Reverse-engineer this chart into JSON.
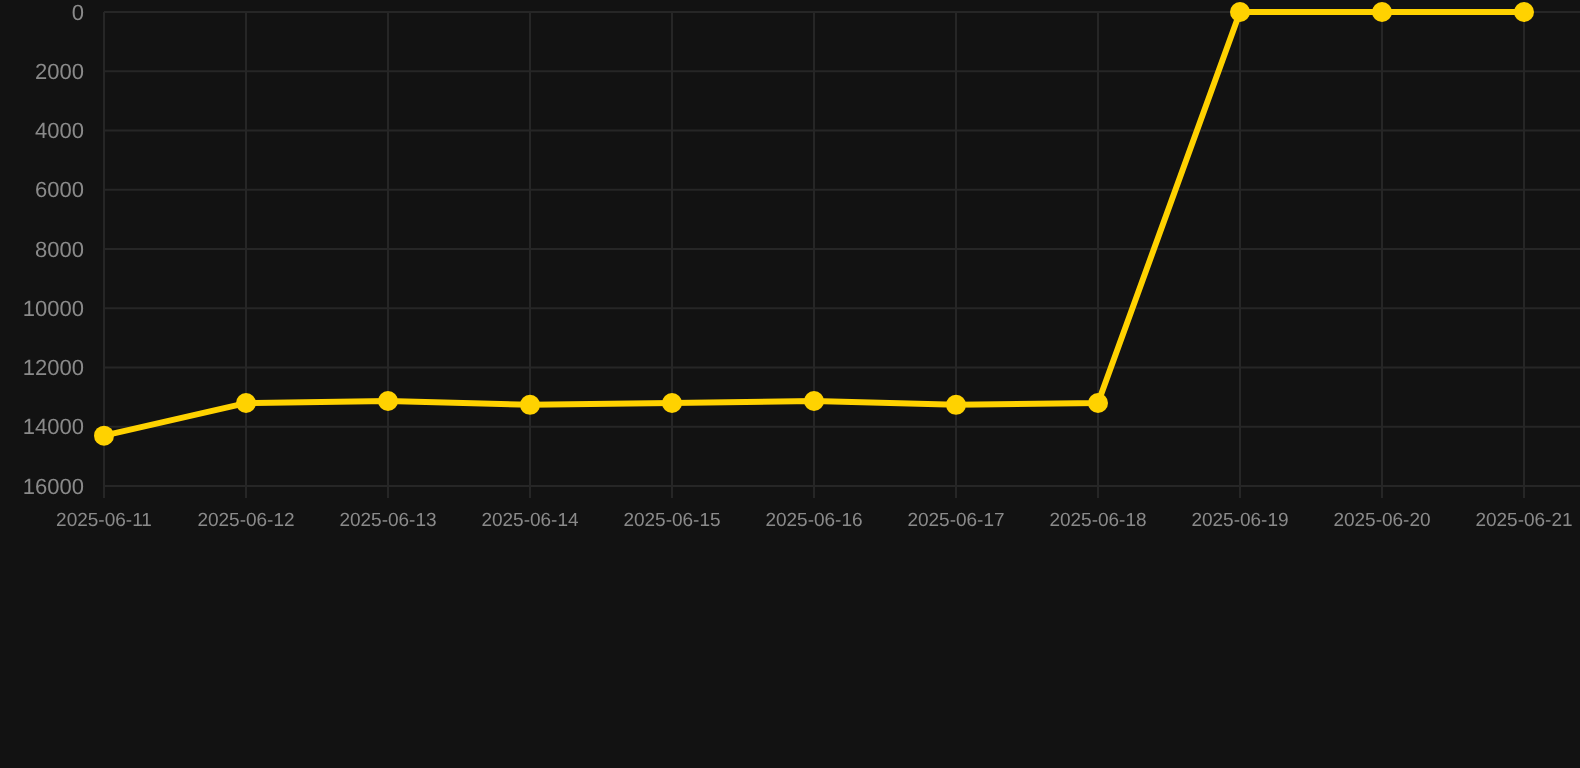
{
  "chart_data": {
    "type": "line",
    "categories": [
      "2025-06-11",
      "2025-06-12",
      "2025-06-13",
      "2025-06-14",
      "2025-06-15",
      "2025-06-16",
      "2025-06-17",
      "2025-06-18",
      "2025-06-19",
      "2025-06-20",
      "2025-06-21"
    ],
    "series": [
      {
        "color": "#ffd200",
        "values": [
          14300,
          13200,
          13130,
          13260,
          13200,
          13130,
          13260,
          13200,
          0,
          0,
          0
        ]
      }
    ],
    "ylim": [
      16000,
      0
    ],
    "yticks": [
      0,
      2000,
      4000,
      6000,
      8000,
      10000,
      12000,
      14000,
      16000
    ],
    "grid": true,
    "marker": "circle",
    "line_style": "solid"
  }
}
